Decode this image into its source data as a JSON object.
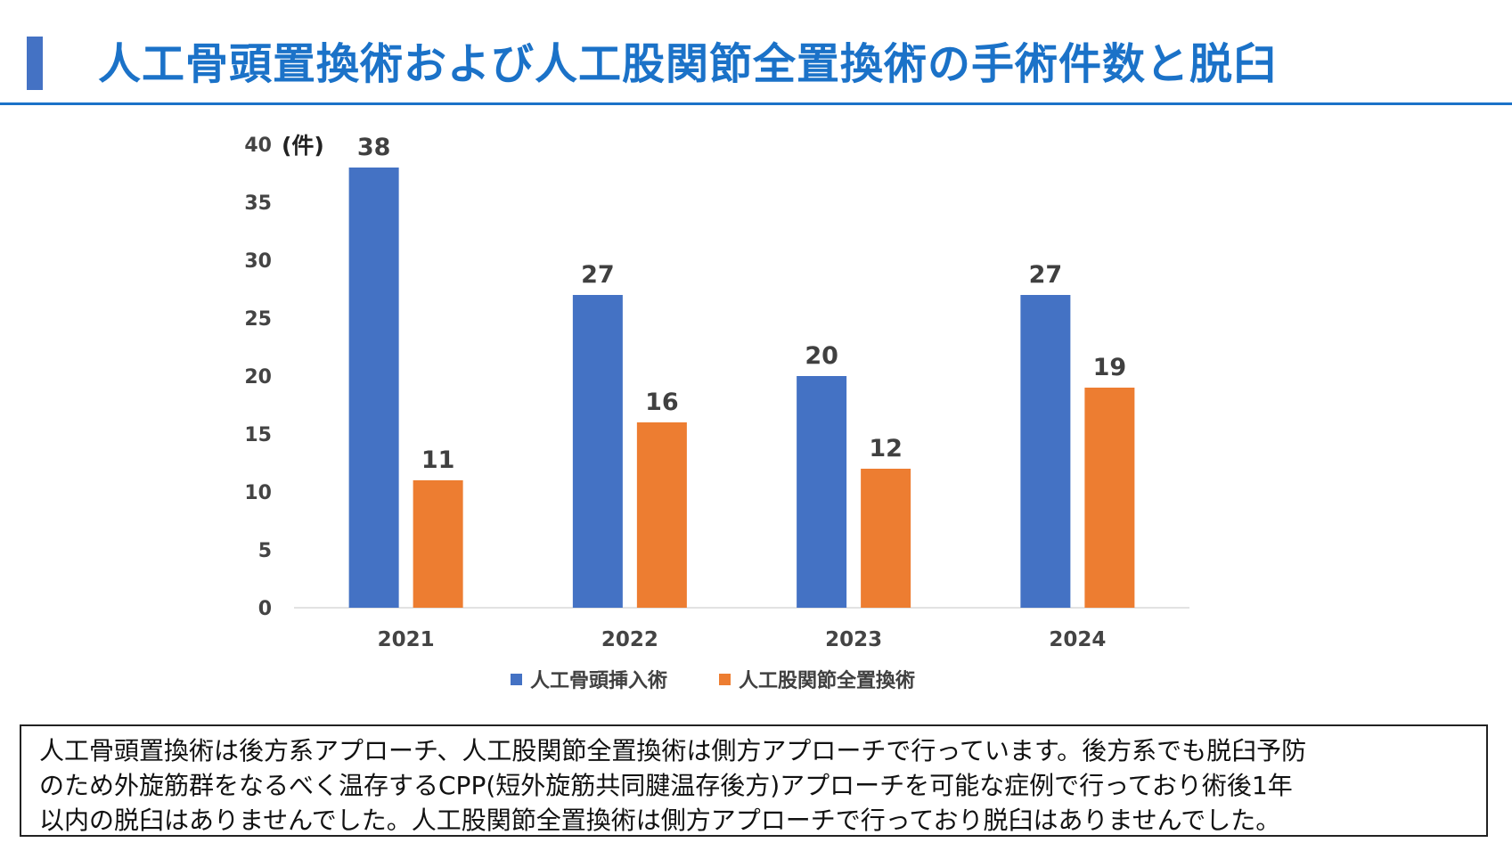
{
  "header": {
    "title": "人工骨頭置換術および人工股関節全置換術の手術件数と脱臼",
    "accent_color": "#1b72c8",
    "marker_color": "#4472c4"
  },
  "chart_data": {
    "type": "bar",
    "categories": [
      "2021",
      "2022",
      "2023",
      "2024"
    ],
    "series": [
      {
        "name": "人工骨頭挿入術",
        "values": [
          38,
          27,
          20,
          27
        ],
        "color": "#4472c4"
      },
      {
        "name": "人工股関節全置換術",
        "values": [
          11,
          16,
          12,
          19
        ],
        "color": "#ed7d31"
      }
    ],
    "ylabel": "(件)",
    "ylim": [
      0,
      40
    ],
    "yticks": [
      0,
      5,
      10,
      15,
      20,
      25,
      30,
      35,
      40
    ],
    "grid": false,
    "data_labels": true,
    "legend": "bottom"
  },
  "note": {
    "lines": [
      "人工骨頭置換術は後方系アプローチ、人工股関節全置換術は側方アプローチで行っています。後方系でも脱臼予防",
      "のため外旋筋群をなるべく温存するCPP(短外旋筋共同腱温存後方)アプローチを可能な症例で行っており術後1年",
      "以内の脱臼はありませんでした。人工股関節全置換術は側方アプローチで行っており脱臼はありませんでした。"
    ]
  }
}
